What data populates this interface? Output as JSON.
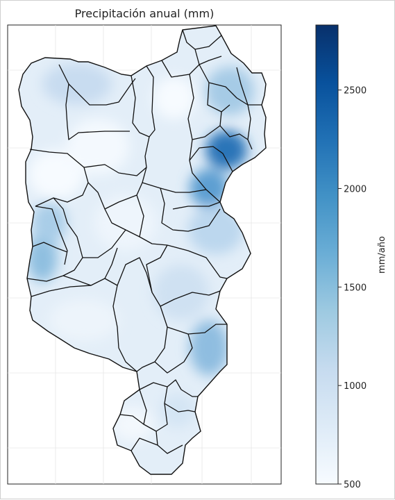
{
  "chart_data": {
    "type": "heatmap",
    "title": "Precipitación anual (mm)",
    "colorbar": {
      "label": "mm/año",
      "min": 500,
      "max": 2830,
      "ticks": [
        500,
        1000,
        1500,
        2000,
        2500
      ],
      "tick_labels": [
        "500",
        "1000",
        "1500",
        "2000",
        "2500"
      ],
      "colormap": "Blues",
      "colors": [
        "#f7fbff",
        "#deebf7",
        "#c6dbef",
        "#9ecae1",
        "#6baed6",
        "#4292c6",
        "#2171b5",
        "#08519c",
        "#08306b"
      ]
    },
    "grid": true,
    "axes_tick_labels": false,
    "legend": "none"
  }
}
